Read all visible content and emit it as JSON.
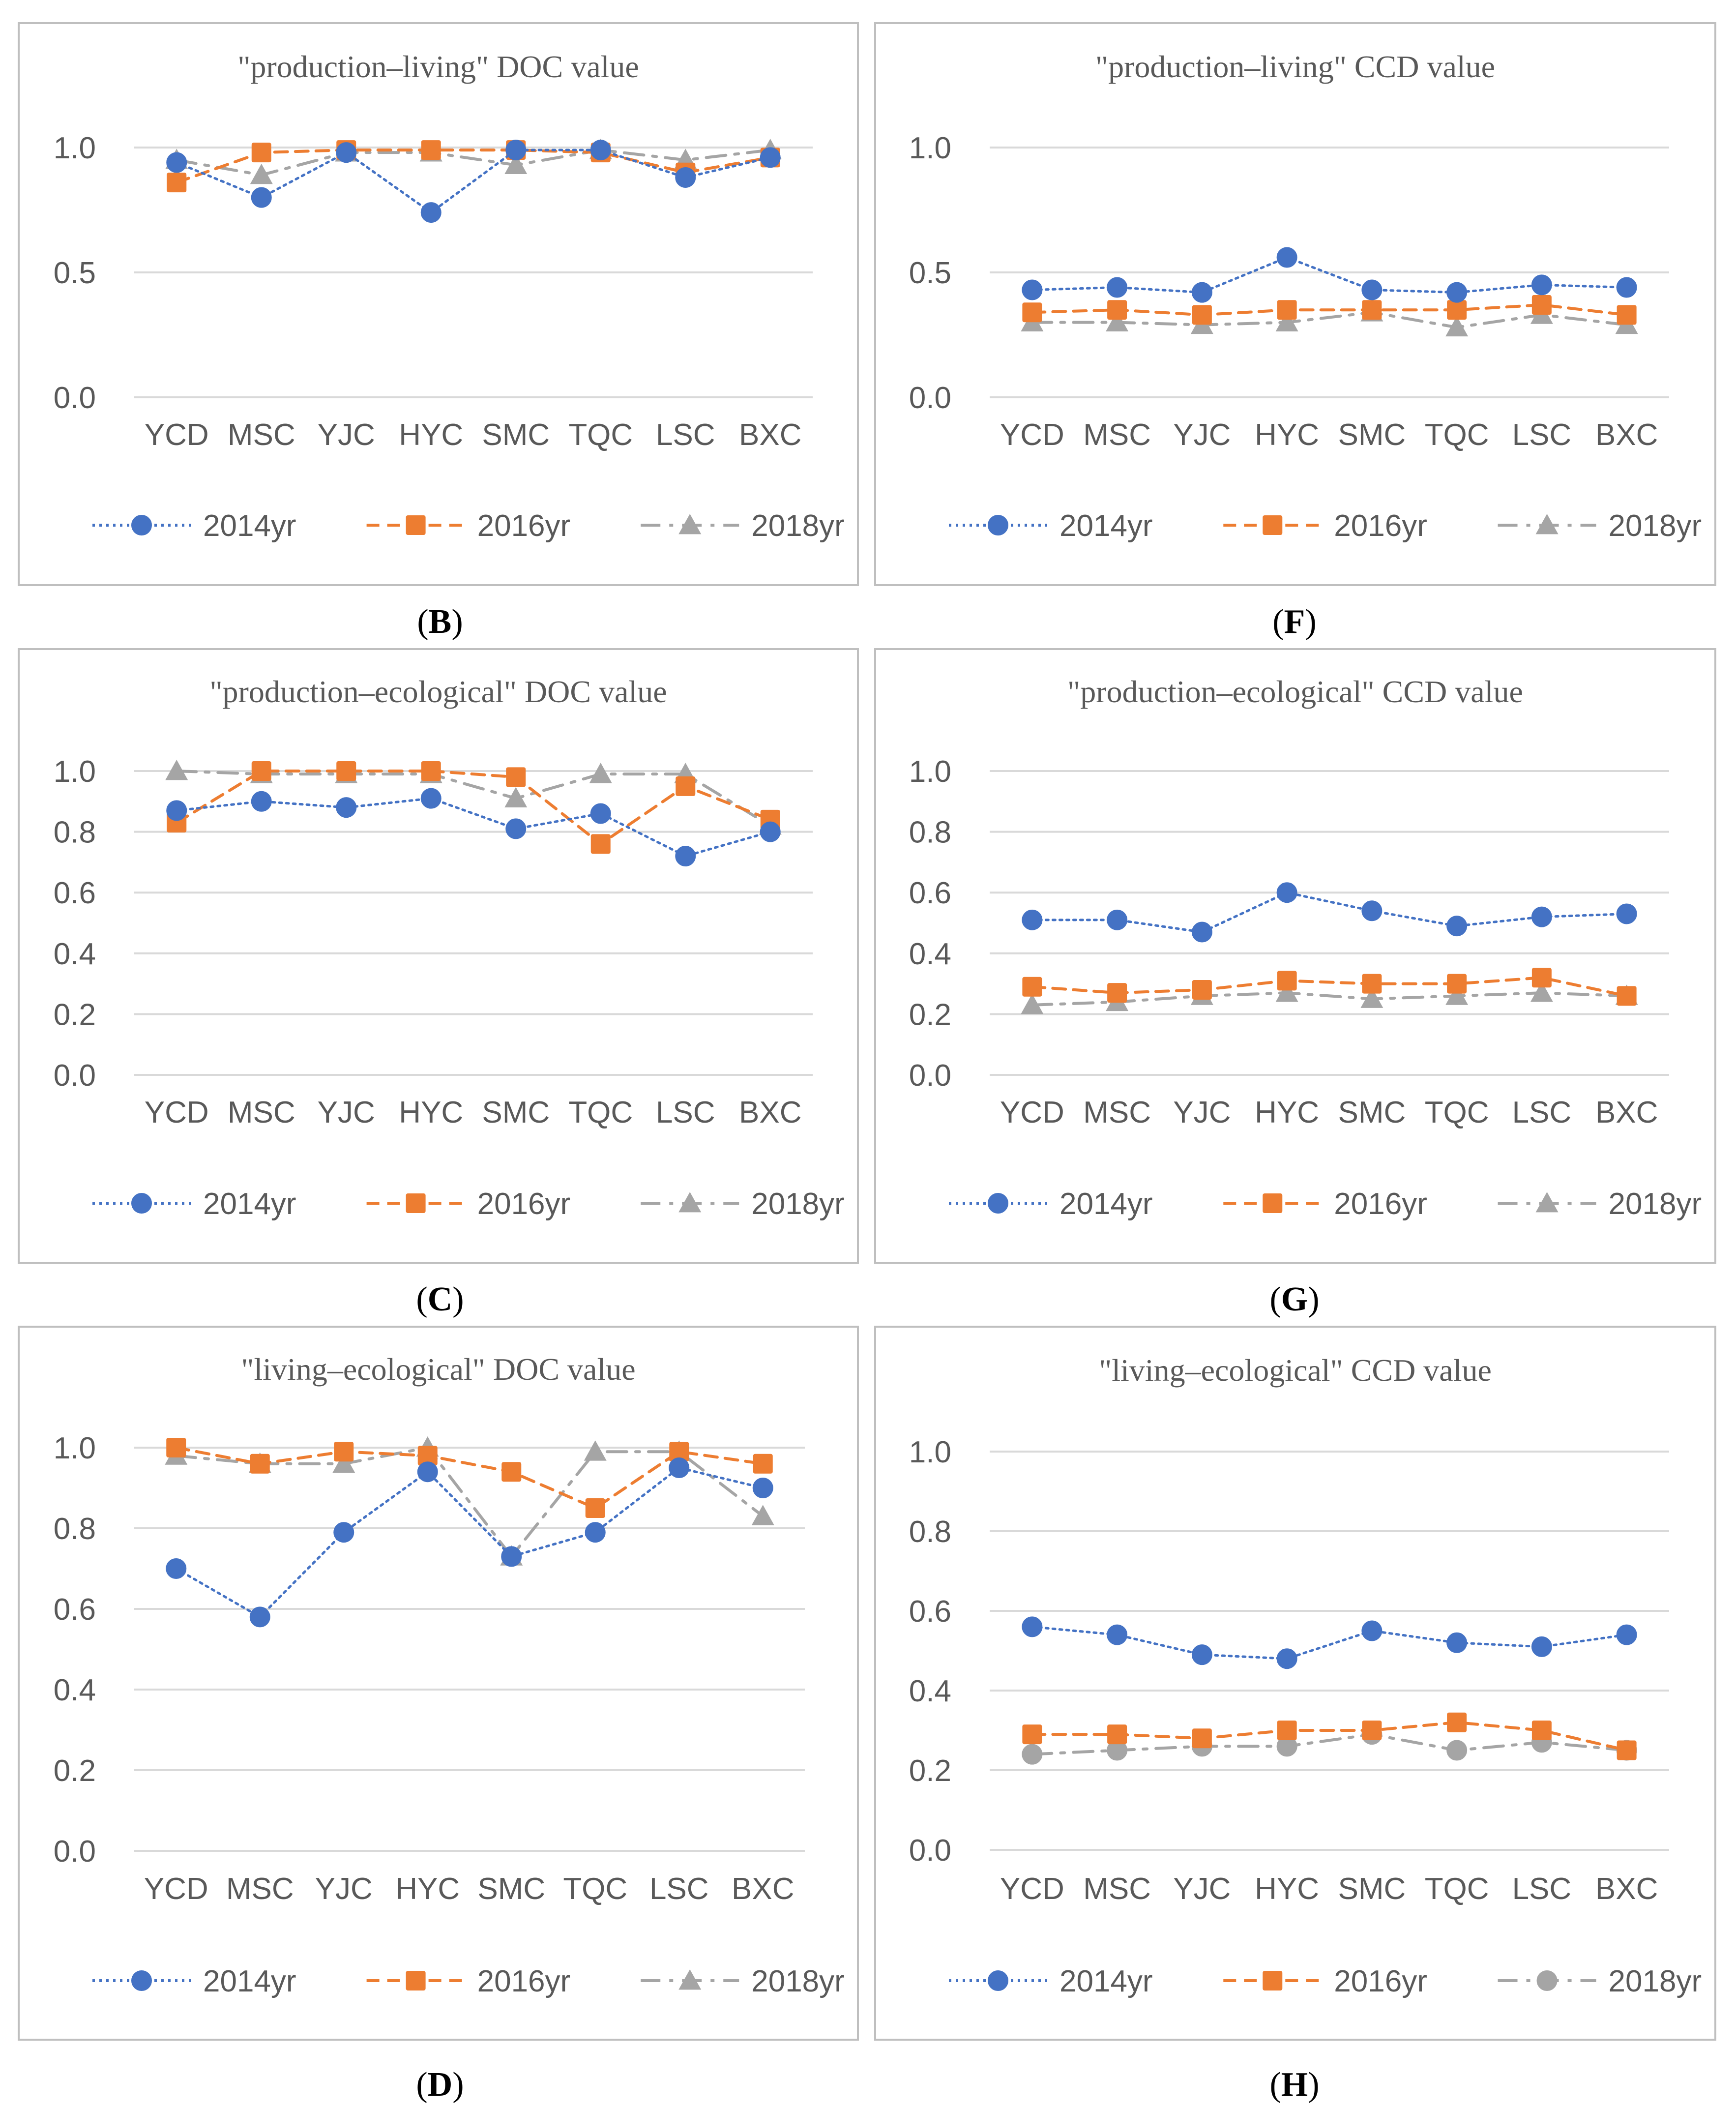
{
  "colors": {
    "s2014": "#4472C4",
    "s2016": "#ED7D31",
    "s2018": "#A5A5A5",
    "grid": "#D9D9D9",
    "frame": "#BFBFBF",
    "text": "#595959"
  },
  "chart_data": [
    {
      "id": "B",
      "caption": "(B)",
      "type": "line",
      "title": "\"production–living\" DOC value",
      "categories": [
        "YCD",
        "MSC",
        "YJC",
        "HYC",
        "SMC",
        "TQC",
        "LSC",
        "BXC"
      ],
      "yticks": [
        0.0,
        0.5,
        1.0
      ],
      "ytick_labels": [
        "0.0",
        "0.5",
        "1.0"
      ],
      "ylim": [
        0,
        1.0
      ],
      "grid": true,
      "legend_position": "bottom",
      "series": [
        {
          "name": "2014yr",
          "marker": "circle",
          "dash": "dotted",
          "values": [
            0.94,
            0.8,
            0.98,
            0.74,
            0.99,
            0.99,
            0.88,
            0.96
          ]
        },
        {
          "name": "2016yr",
          "marker": "square",
          "dash": "dashed",
          "values": [
            0.86,
            0.98,
            0.99,
            0.99,
            0.99,
            0.98,
            0.9,
            0.96
          ]
        },
        {
          "name": "2018yr",
          "marker": "triangle",
          "dash": "longdash",
          "values": [
            0.95,
            0.89,
            0.98,
            0.98,
            0.93,
            0.99,
            0.95,
            0.99
          ]
        }
      ]
    },
    {
      "id": "F",
      "caption": "(F)",
      "type": "line",
      "title": "\"production–living\" CCD value",
      "categories": [
        "YCD",
        "MSC",
        "YJC",
        "HYC",
        "SMC",
        "TQC",
        "LSC",
        "BXC"
      ],
      "yticks": [
        0.0,
        0.5,
        1.0
      ],
      "ytick_labels": [
        "0.0",
        "0.5",
        "1.0"
      ],
      "ylim": [
        0,
        1.0
      ],
      "grid": true,
      "legend_position": "bottom",
      "series": [
        {
          "name": "2014yr",
          "marker": "circle",
          "dash": "dotted",
          "values": [
            0.43,
            0.44,
            0.42,
            0.56,
            0.43,
            0.42,
            0.45,
            0.44
          ]
        },
        {
          "name": "2016yr",
          "marker": "square",
          "dash": "dashed",
          "values": [
            0.34,
            0.35,
            0.33,
            0.35,
            0.35,
            0.35,
            0.37,
            0.33
          ]
        },
        {
          "name": "2018yr",
          "marker": "triangle",
          "dash": "longdash",
          "values": [
            0.3,
            0.3,
            0.29,
            0.3,
            0.34,
            0.28,
            0.33,
            0.29
          ]
        }
      ]
    },
    {
      "id": "C",
      "caption": "(C)",
      "type": "line",
      "title": "\"production–ecological\" DOC value",
      "categories": [
        "YCD",
        "MSC",
        "YJC",
        "HYC",
        "SMC",
        "TQC",
        "LSC",
        "BXC"
      ],
      "yticks": [
        0.0,
        0.2,
        0.4,
        0.6,
        0.8,
        1.0
      ],
      "ytick_labels": [
        "0.0",
        "0.2",
        "0.4",
        "0.6",
        "0.8",
        "1.0"
      ],
      "ylim": [
        0,
        1.0
      ],
      "grid": true,
      "legend_position": "bottom",
      "series": [
        {
          "name": "2014yr",
          "marker": "circle",
          "dash": "dotted",
          "values": [
            0.87,
            0.9,
            0.88,
            0.91,
            0.81,
            0.86,
            0.72,
            0.8
          ]
        },
        {
          "name": "2016yr",
          "marker": "square",
          "dash": "dashed",
          "values": [
            0.83,
            1.0,
            1.0,
            1.0,
            0.98,
            0.76,
            0.95,
            0.84
          ]
        },
        {
          "name": "2018yr",
          "marker": "triangle",
          "dash": "longdash",
          "values": [
            1.0,
            0.99,
            0.99,
            0.99,
            0.91,
            0.99,
            0.99,
            0.82
          ]
        }
      ]
    },
    {
      "id": "G",
      "caption": "(G)",
      "type": "line",
      "title": "\"production–ecological\" CCD value",
      "categories": [
        "YCD",
        "MSC",
        "YJC",
        "HYC",
        "SMC",
        "TQC",
        "LSC",
        "BXC"
      ],
      "yticks": [
        0.0,
        0.2,
        0.4,
        0.6,
        0.8,
        1.0
      ],
      "ytick_labels": [
        "0.0",
        "0.2",
        "0.4",
        "0.6",
        "0.8",
        "1.0"
      ],
      "ylim": [
        0,
        1.0
      ],
      "grid": true,
      "legend_position": "bottom",
      "series": [
        {
          "name": "2014yr",
          "marker": "circle",
          "dash": "dotted",
          "values": [
            0.51,
            0.51,
            0.47,
            0.6,
            0.54,
            0.49,
            0.52,
            0.53
          ]
        },
        {
          "name": "2016yr",
          "marker": "square",
          "dash": "dashed",
          "values": [
            0.29,
            0.27,
            0.28,
            0.31,
            0.3,
            0.3,
            0.32,
            0.26
          ]
        },
        {
          "name": "2018yr",
          "marker": "triangle",
          "dash": "longdash",
          "values": [
            0.23,
            0.24,
            0.26,
            0.27,
            0.25,
            0.26,
            0.27,
            0.26
          ]
        }
      ]
    },
    {
      "id": "D",
      "caption": "(D)",
      "type": "line",
      "title": "\"living–ecological\" DOC value",
      "categories": [
        "YCD",
        "MSC",
        "YJC",
        "HYC",
        "SMC",
        "TQC",
        "LSC",
        "BXC"
      ],
      "yticks": [
        0.0,
        0.2,
        0.4,
        0.6,
        0.8,
        1.0
      ],
      "ytick_labels": [
        "0.0",
        "0.2",
        "0.4",
        "0.6",
        "0.8",
        "1.0"
      ],
      "ylim": [
        0,
        1.0
      ],
      "grid": true,
      "legend_position": "bottom",
      "series": [
        {
          "name": "2014yr",
          "marker": "circle",
          "dash": "dotted",
          "values": [
            0.7,
            0.58,
            0.79,
            0.94,
            0.73,
            0.79,
            0.95,
            0.9
          ]
        },
        {
          "name": "2016yr",
          "marker": "square",
          "dash": "dashed",
          "values": [
            1.0,
            0.96,
            0.99,
            0.98,
            0.94,
            0.85,
            0.99,
            0.96
          ]
        },
        {
          "name": "2018yr",
          "marker": "triangle",
          "dash": "longdash",
          "values": [
            0.98,
            0.96,
            0.96,
            1.0,
            0.73,
            0.99,
            0.99,
            0.83
          ]
        }
      ]
    },
    {
      "id": "H",
      "caption": "(H)",
      "type": "line",
      "title": "\"living–ecological\" CCD value",
      "categories": [
        "YCD",
        "MSC",
        "YJC",
        "HYC",
        "SMC",
        "TQC",
        "LSC",
        "BXC"
      ],
      "yticks": [
        0.0,
        0.2,
        0.4,
        0.6,
        0.8,
        1.0
      ],
      "ytick_labels": [
        "0.0",
        "0.2",
        "0.4",
        "0.6",
        "0.8",
        "1.0"
      ],
      "ylim": [
        0,
        1.0
      ],
      "grid": true,
      "legend_position": "bottom",
      "series": [
        {
          "name": "2014yr",
          "marker": "circle",
          "dash": "dotted",
          "values": [
            0.56,
            0.54,
            0.49,
            0.48,
            0.55,
            0.52,
            0.51,
            0.54
          ]
        },
        {
          "name": "2016yr",
          "marker": "square",
          "dash": "dashed",
          "values": [
            0.29,
            0.29,
            0.28,
            0.3,
            0.3,
            0.32,
            0.3,
            0.25
          ]
        },
        {
          "name": "2018yr",
          "marker": "circle",
          "dash": "longdash",
          "values": [
            0.24,
            0.25,
            0.26,
            0.26,
            0.29,
            0.25,
            0.27,
            0.25
          ]
        }
      ]
    }
  ]
}
